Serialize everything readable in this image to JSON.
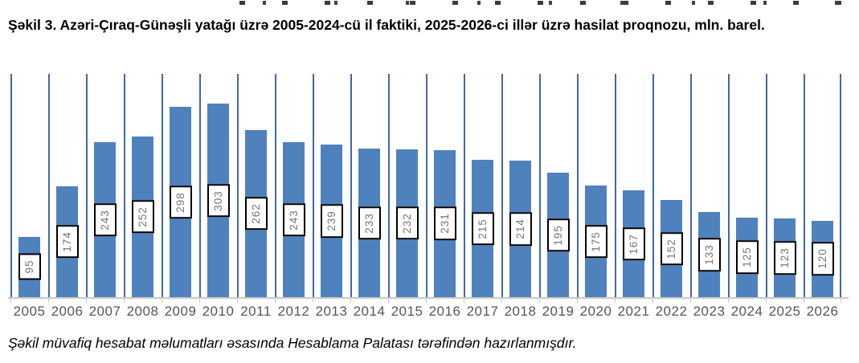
{
  "figure": {
    "title": "Şəkil 3. Azəri-Çıraq-Günəşli yatağı üzrə 2005-2024-cü il faktiki, 2025-2026-ci illər üzrə hasilat proqnozu, mln. barel.",
    "footnote": "Şəkil müvafiq hesabat məlumatları əsasında Hesablama Palatası tərəfindən hazırlanmışdır."
  },
  "chart_data": {
    "type": "bar",
    "title": "Şəkil 3. Azəri-Çıraq-Günəşli yatağı üzrə 2005-2024-cü il faktiki, 2025-2026-ci illər üzrə hasilat proqnozu, mln. barel.",
    "categories": [
      "2005",
      "2006",
      "2007",
      "2008",
      "2009",
      "2010",
      "2011",
      "2012",
      "2013",
      "2014",
      "2015",
      "2016",
      "2017",
      "2018",
      "2019",
      "2020",
      "2021",
      "2022",
      "2023",
      "2024",
      "2025",
      "2026"
    ],
    "values": [
      95,
      174,
      243,
      252,
      298,
      303,
      262,
      243,
      239,
      233,
      232,
      231,
      215,
      214,
      195,
      175,
      167,
      152,
      133,
      125,
      123,
      120
    ],
    "xlabel": "",
    "ylabel": "",
    "ylim": [
      0,
      350
    ],
    "grid": "vertical-category-gridlines",
    "legend": "none",
    "data_labels": "boxed, rotated 90°, centered on bars",
    "colors": {
      "bar": "#4F81BD",
      "gridline": "#44689E",
      "axis_line": "#C9C9C9",
      "value_label_text": "#767676",
      "value_label_border": "#000000",
      "tick_label_text": "#565656"
    }
  }
}
